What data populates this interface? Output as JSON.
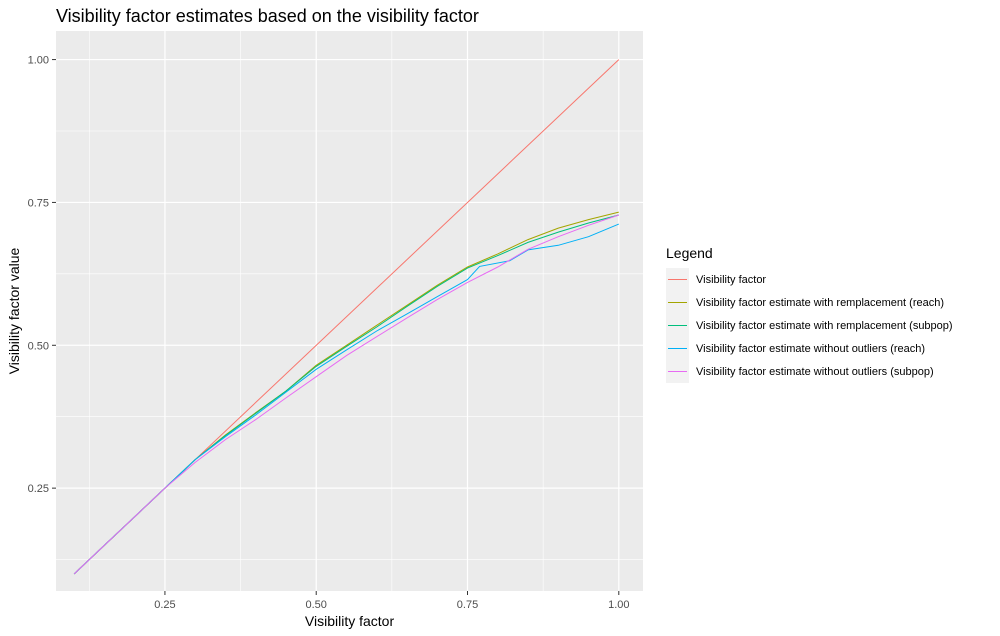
{
  "chart_data": {
    "type": "line",
    "title": "Visibility factor estimates based on the visibility factor",
    "xlabel": "Visibility factor",
    "ylabel": "Visibility factor value",
    "xlim": [
      0.07,
      1.04
    ],
    "ylim": [
      0.07,
      1.05
    ],
    "x_ticks": [
      0.25,
      0.5,
      0.75,
      1.0
    ],
    "x_tick_labels": [
      "0.25",
      "0.50",
      "0.75",
      "1.00"
    ],
    "y_ticks": [
      0.25,
      0.5,
      0.75,
      1.0
    ],
    "y_tick_labels": [
      "0.25",
      "0.50",
      "0.75",
      "1.00"
    ],
    "grid": true,
    "legend": {
      "title": "Legend",
      "position": "right"
    },
    "series": [
      {
        "name": "Visibility factor",
        "color": "#F8766D",
        "x": [
          0.1,
          1.0
        ],
        "y": [
          0.1,
          1.0
        ]
      },
      {
        "name": "Visibility factor estimate with remplacement (reach)",
        "color": "#A3A500",
        "x": [
          0.1,
          0.15,
          0.2,
          0.25,
          0.3,
          0.35,
          0.4,
          0.45,
          0.5,
          0.55,
          0.6,
          0.65,
          0.7,
          0.75,
          0.8,
          0.85,
          0.9,
          0.95,
          1.0
        ],
        "y": [
          0.1,
          0.15,
          0.2,
          0.25,
          0.3,
          0.343,
          0.382,
          0.42,
          0.465,
          0.5,
          0.535,
          0.57,
          0.605,
          0.637,
          0.66,
          0.685,
          0.705,
          0.72,
          0.733
        ]
      },
      {
        "name": "Visibility factor estimate with remplacement (subpop)",
        "color": "#00BF7D",
        "x": [
          0.1,
          0.15,
          0.2,
          0.25,
          0.3,
          0.35,
          0.4,
          0.45,
          0.5,
          0.55,
          0.6,
          0.65,
          0.7,
          0.75,
          0.8,
          0.85,
          0.9,
          0.95,
          1.0
        ],
        "y": [
          0.1,
          0.15,
          0.2,
          0.25,
          0.3,
          0.342,
          0.381,
          0.42,
          0.463,
          0.498,
          0.532,
          0.568,
          0.603,
          0.635,
          0.657,
          0.68,
          0.698,
          0.714,
          0.728
        ]
      },
      {
        "name": "Visibility factor estimate without outliers (reach)",
        "color": "#00B0F6",
        "x": [
          0.1,
          0.15,
          0.2,
          0.25,
          0.3,
          0.35,
          0.4,
          0.45,
          0.5,
          0.55,
          0.6,
          0.65,
          0.7,
          0.75,
          0.77,
          0.82,
          0.85,
          0.9,
          0.95,
          1.0
        ],
        "y": [
          0.1,
          0.15,
          0.2,
          0.25,
          0.3,
          0.34,
          0.378,
          0.418,
          0.458,
          0.492,
          0.525,
          0.555,
          0.585,
          0.615,
          0.638,
          0.648,
          0.667,
          0.675,
          0.69,
          0.712
        ]
      },
      {
        "name": "Visibility factor estimate without outliers (subpop)",
        "color": "#E76BF3",
        "x": [
          0.1,
          0.15,
          0.2,
          0.25,
          0.3,
          0.35,
          0.4,
          0.45,
          0.5,
          0.55,
          0.6,
          0.65,
          0.7,
          0.75,
          0.8,
          0.85,
          0.9,
          0.95,
          1.0
        ],
        "y": [
          0.1,
          0.15,
          0.2,
          0.25,
          0.295,
          0.335,
          0.37,
          0.408,
          0.445,
          0.482,
          0.515,
          0.548,
          0.58,
          0.61,
          0.637,
          0.668,
          0.69,
          0.71,
          0.728
        ]
      }
    ]
  }
}
